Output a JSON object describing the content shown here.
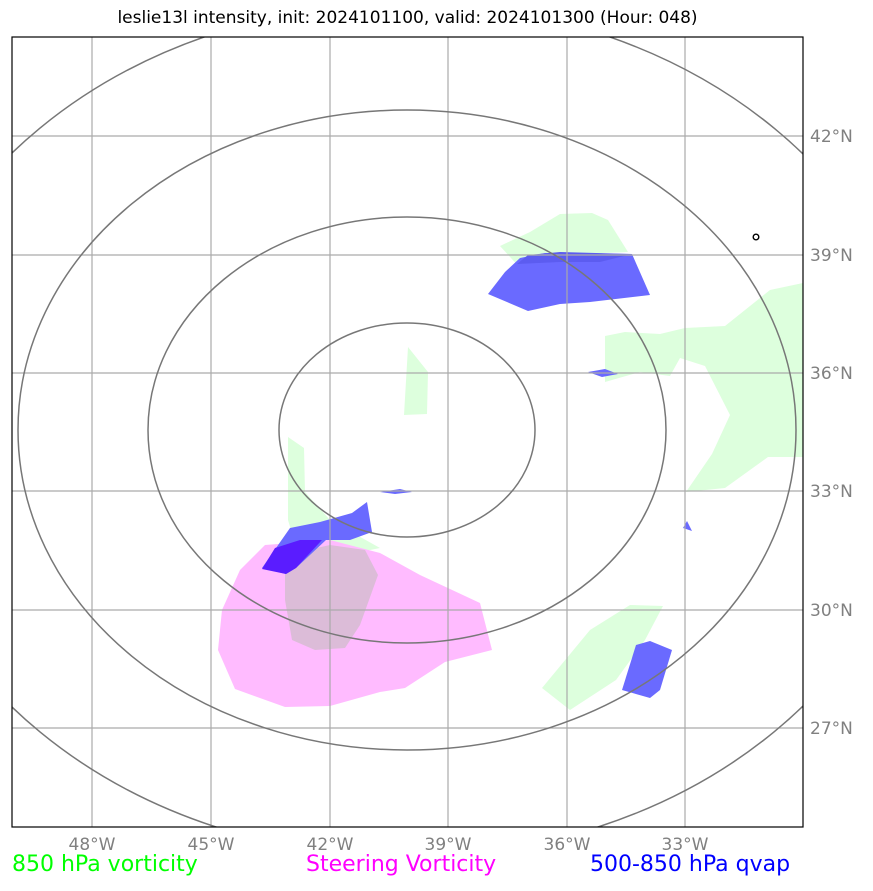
{
  "title": "leslie13l intensity, init: 2024101100, valid: 2024101300 (Hour: 048)",
  "map": {
    "lon_ticks": [
      "48°W",
      "45°W",
      "42°W",
      "39°W",
      "36°W",
      "33°W"
    ],
    "lat_ticks": [
      "42°N",
      "39°N",
      "36°N",
      "33°N",
      "30°N",
      "27°N"
    ]
  },
  "legend": {
    "green": {
      "label": "850 hPa vorticity",
      "color": "#00ff00"
    },
    "magenta": {
      "label": "Steering Vorticity",
      "color": "#ff00ff"
    },
    "blue": {
      "label": "500-850 hPa qvap",
      "color": "#0000ff"
    }
  },
  "colors": {
    "vorticity_fill": "#ddffdd",
    "steering_fill": "#ffbbff",
    "qvap_fill": "#6a6aff",
    "qvap_dark": "#5a1cff",
    "overlap_fill": "#dcbcd8",
    "range_rings": "#777777",
    "gridlines": "#aaaaaa"
  }
}
